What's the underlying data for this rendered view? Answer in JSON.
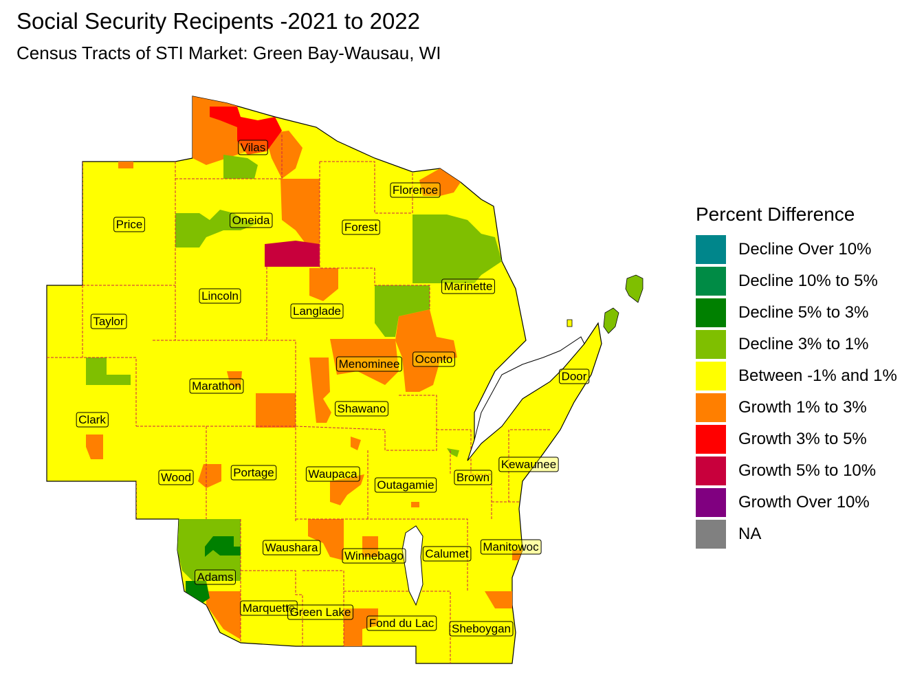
{
  "title": "Social Security Recipents -2021 to 2022",
  "subtitle": "Census Tracts of STI Market: Green Bay-Wausau, WI",
  "legend": {
    "title": "Percent Difference",
    "items": [
      {
        "label": "Decline Over 10%",
        "color": "#00868B"
      },
      {
        "label": "Decline 10% to 5%",
        "color": "#008B45"
      },
      {
        "label": "Decline 5% to 3%",
        "color": "#008000"
      },
      {
        "label": "Decline 3% to 1%",
        "color": "#7FBF00"
      },
      {
        "label": "Between -1% and 1%",
        "color": "#FFFF00"
      },
      {
        "label": "Growth 1% to 3%",
        "color": "#FF7F00"
      },
      {
        "label": "Growth 3% to 5%",
        "color": "#FF0000"
      },
      {
        "label": "Growth 5% to 10%",
        "color": "#C8003C"
      },
      {
        "label": "Growth Over 10%",
        "color": "#800080"
      },
      {
        "label": "NA",
        "color": "#808080"
      }
    ]
  },
  "counties": [
    "Vilas",
    "Florence",
    "Price",
    "Oneida",
    "Forest",
    "Marinette",
    "Lincoln",
    "Langlade",
    "Taylor",
    "Door",
    "Menominee",
    "Oconto",
    "Marathon",
    "Shawano",
    "Clark",
    "Kewaunee",
    "Wood",
    "Portage",
    "Waupaca",
    "Brown",
    "Outagamie",
    "Waushara",
    "Calumet",
    "Manitowoc",
    "Winnebago",
    "Adams",
    "Marquette",
    "Green Lake",
    "Fond du Lac",
    "Sheboygan"
  ]
}
